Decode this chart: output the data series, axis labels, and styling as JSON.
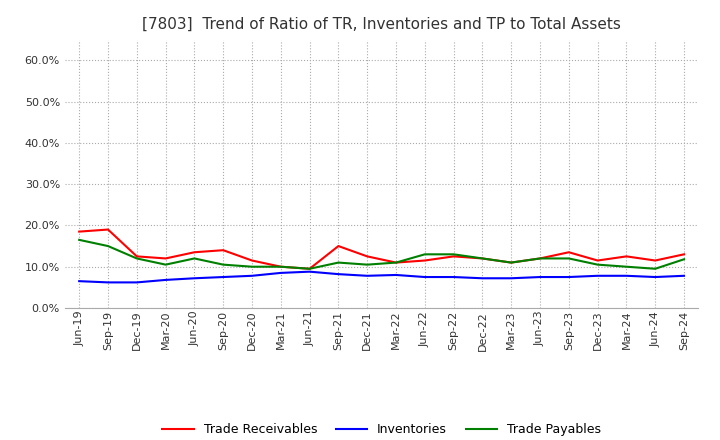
{
  "title": "[7803]  Trend of Ratio of TR, Inventories and TP to Total Assets",
  "x_labels": [
    "Jun-19",
    "Sep-19",
    "Dec-19",
    "Mar-20",
    "Jun-20",
    "Sep-20",
    "Dec-20",
    "Mar-21",
    "Jun-21",
    "Sep-21",
    "Dec-21",
    "Mar-22",
    "Jun-22",
    "Sep-22",
    "Dec-22",
    "Mar-23",
    "Jun-23",
    "Sep-23",
    "Dec-23",
    "Mar-24",
    "Jun-24",
    "Sep-24"
  ],
  "trade_receivables": [
    0.185,
    0.19,
    0.125,
    0.12,
    0.135,
    0.14,
    0.115,
    0.1,
    0.095,
    0.15,
    0.125,
    0.11,
    0.115,
    0.125,
    0.12,
    0.11,
    0.12,
    0.135,
    0.115,
    0.125,
    0.115,
    0.13
  ],
  "inventories": [
    0.065,
    0.062,
    0.062,
    0.068,
    0.072,
    0.075,
    0.078,
    0.085,
    0.088,
    0.082,
    0.078,
    0.08,
    0.075,
    0.075,
    0.072,
    0.072,
    0.075,
    0.075,
    0.078,
    0.078,
    0.075,
    0.078
  ],
  "trade_payables": [
    0.165,
    0.15,
    0.12,
    0.105,
    0.12,
    0.105,
    0.1,
    0.1,
    0.095,
    0.11,
    0.105,
    0.11,
    0.13,
    0.13,
    0.12,
    0.11,
    0.12,
    0.12,
    0.105,
    0.1,
    0.095,
    0.118
  ],
  "ylim": [
    0.0,
    0.65
  ],
  "yticks": [
    0.0,
    0.1,
    0.2,
    0.3,
    0.4,
    0.5,
    0.6
  ],
  "tr_color": "#ff0000",
  "inv_color": "#0000ff",
  "tp_color": "#008000",
  "background_color": "#ffffff",
  "grid_color": "#aaaaaa",
  "title_fontsize": 11,
  "tick_fontsize": 8,
  "legend_fontsize": 9
}
